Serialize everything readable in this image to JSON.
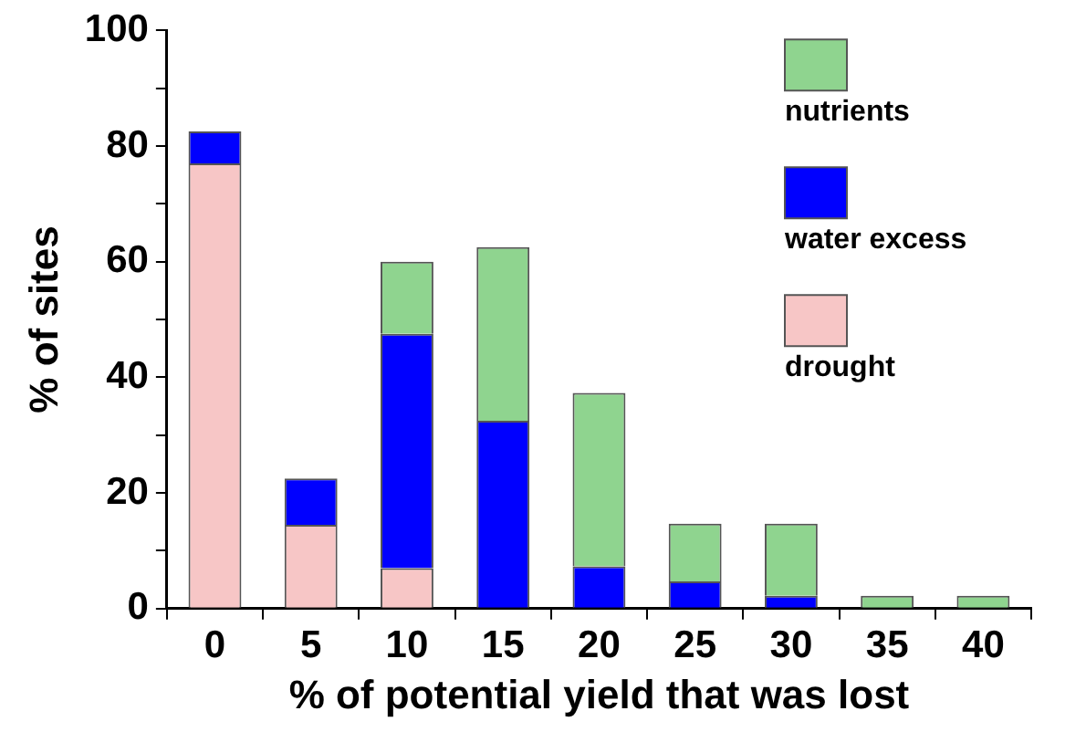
{
  "chart_data": {
    "type": "bar",
    "stacked": true,
    "xlabel": "% of potential yield that was lost",
    "ylabel": "% of sites",
    "categories": [
      "0",
      "5",
      "10",
      "15",
      "20",
      "25",
      "30",
      "35",
      "40"
    ],
    "series": [
      {
        "name": "drought",
        "color": "#f7c6c6",
        "values": [
          77,
          14.5,
          7,
          0,
          0,
          0,
          0,
          0,
          0
        ]
      },
      {
        "name": "water excess",
        "color": "#0000ff",
        "values": [
          5.5,
          8,
          40.5,
          32.5,
          7.3,
          4.7,
          2.2,
          0,
          0
        ]
      },
      {
        "name": "nutrients",
        "color": "#8fd48f",
        "values": [
          0,
          0,
          12.5,
          30,
          30,
          10,
          12.5,
          2.2,
          2.2
        ]
      }
    ],
    "ylim": [
      0,
      100
    ],
    "yticks": [
      0,
      {
        "value": 10,
        "label": null
      },
      20,
      {
        "value": 30,
        "label": null
      },
      40,
      {
        "value": 50,
        "label": null
      },
      60,
      {
        "value": 70,
        "label": null
      },
      80,
      {
        "value": 90,
        "label": null
      },
      100
    ],
    "grid": false,
    "legend": "top right"
  }
}
